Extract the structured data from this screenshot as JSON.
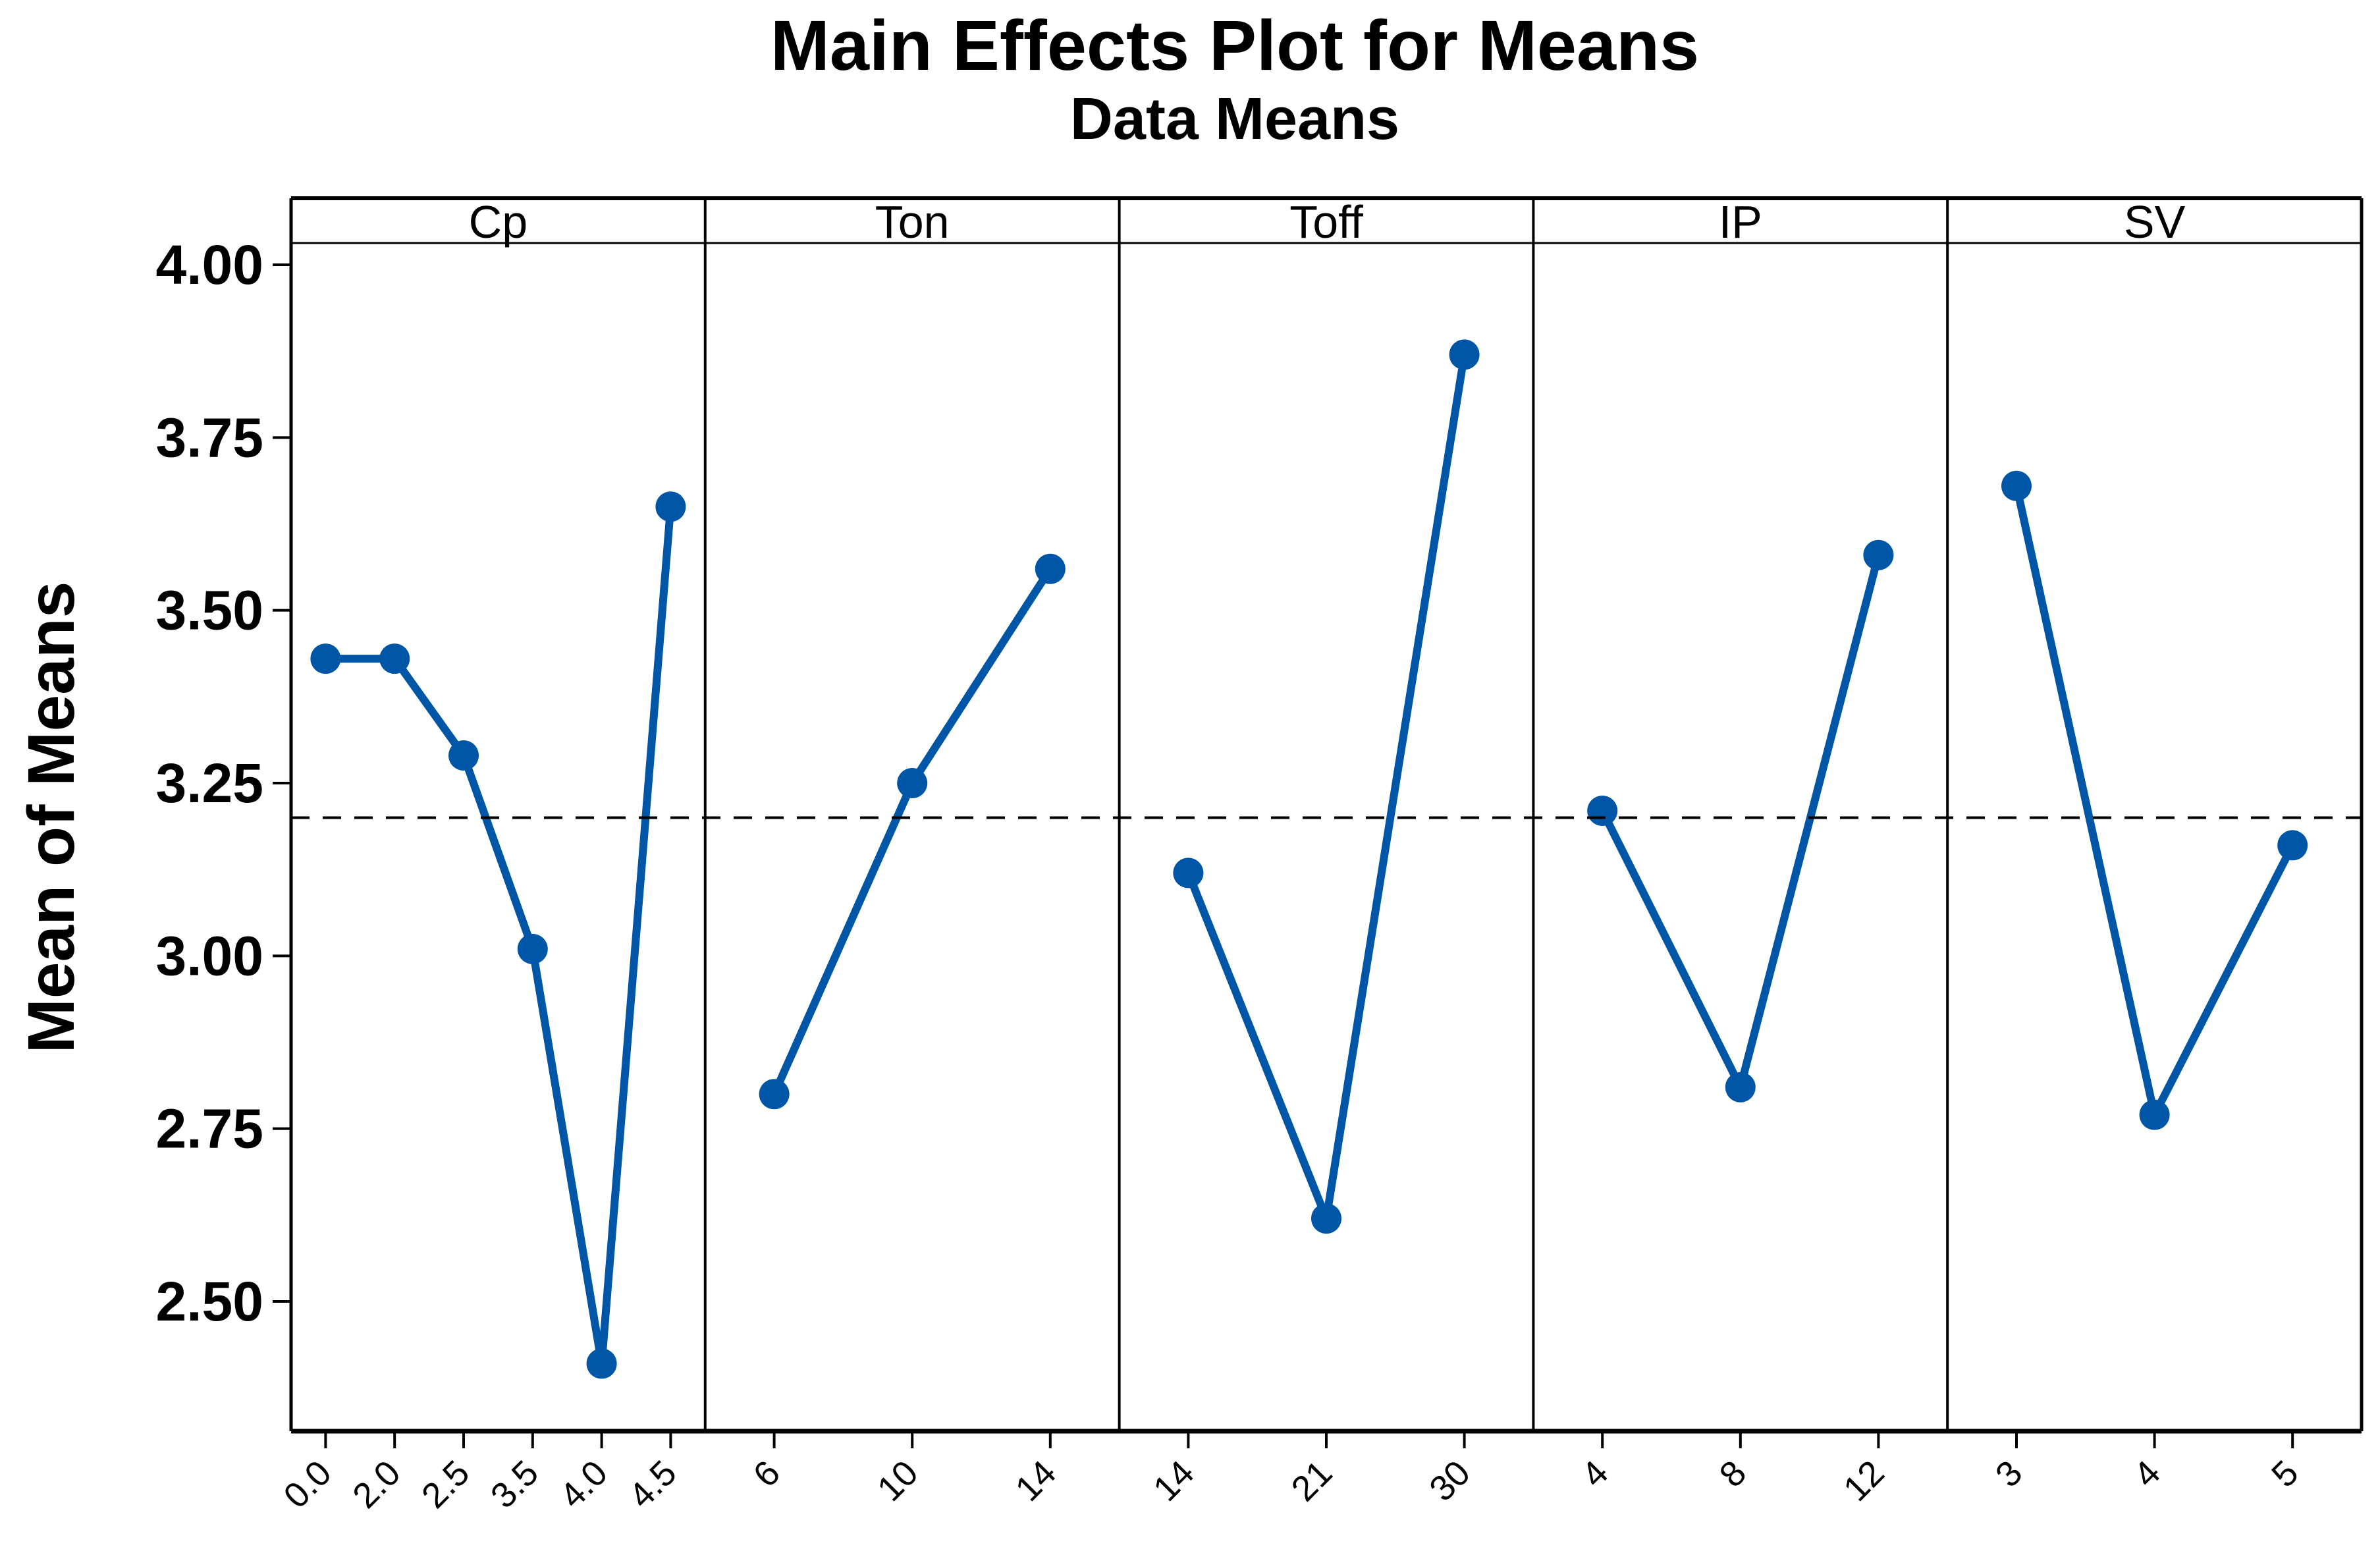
{
  "title": "Main Effects Plot for Means",
  "subtitle": "Data Means",
  "y_axis": {
    "label": "Mean of Means",
    "tick_labels": [
      "4.00",
      "3.75",
      "3.50",
      "3.25",
      "3.00",
      "2.75",
      "2.50"
    ]
  },
  "chart_data": {
    "type": "line",
    "title": "Main Effects Plot for Means",
    "subtitle": "Data Means",
    "ylabel": "Mean of Means",
    "ylim": [
      2.31,
      4.03
    ],
    "yticks": [
      4.0,
      3.75,
      3.5,
      3.25,
      3.0,
      2.75,
      2.5
    ],
    "reference_mean": 3.2,
    "reference_style": "dashed",
    "grid": "off",
    "panels": [
      {
        "factor": "Cp",
        "levels": [
          "0.0",
          "2.0",
          "2.5",
          "3.5",
          "4.0",
          "4.5"
        ],
        "means": [
          3.43,
          3.43,
          3.29,
          3.01,
          2.41,
          3.65
        ]
      },
      {
        "factor": "Ton",
        "levels": [
          "6",
          "10",
          "14"
        ],
        "means": [
          2.8,
          3.25,
          3.56
        ]
      },
      {
        "factor": "Toff",
        "levels": [
          "14",
          "21",
          "30"
        ],
        "means": [
          3.12,
          2.62,
          3.87
        ]
      },
      {
        "factor": "IP",
        "levels": [
          "4",
          "8",
          "12"
        ],
        "means": [
          3.21,
          2.81,
          3.58
        ]
      },
      {
        "factor": "SV",
        "levels": [
          "3",
          "4",
          "5"
        ],
        "means": [
          3.68,
          2.77,
          3.16
        ]
      }
    ],
    "colors": {
      "series": "#0056a6",
      "reference_line": "#000000",
      "frame": "#000000",
      "text": "#000000",
      "background": "#ffffff"
    },
    "marker": "filled-circle",
    "legend": "none"
  }
}
